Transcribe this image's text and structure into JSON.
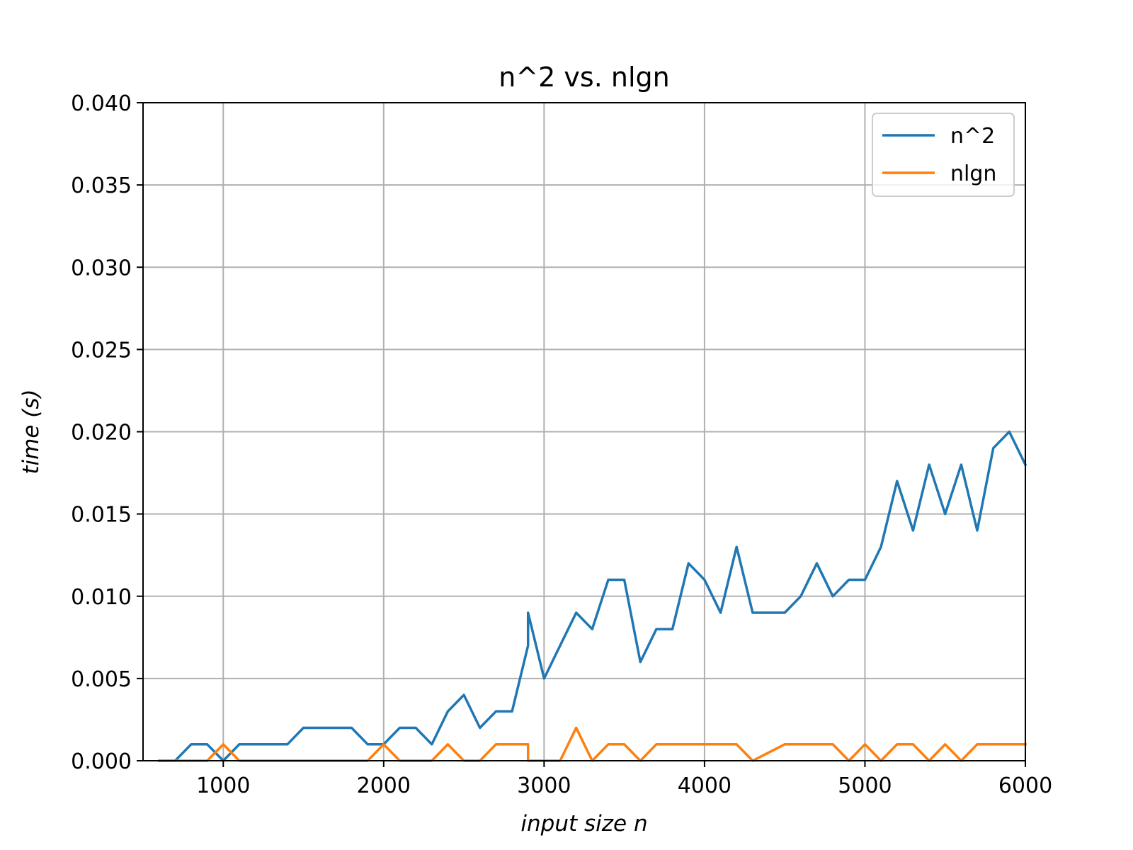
{
  "chart_data": {
    "type": "line",
    "title": "n^2 vs. nlgn",
    "xlabel": "input size n",
    "ylabel": "time (s)",
    "xlim": [
      500,
      6000
    ],
    "ylim": [
      0,
      0.04
    ],
    "xticks": [
      1000,
      2000,
      3000,
      4000,
      5000,
      6000
    ],
    "xtick_labels": [
      "1000",
      "2000",
      "3000",
      "4000",
      "5000",
      "6000"
    ],
    "yticks": [
      0,
      0.005,
      0.01,
      0.015,
      0.02,
      0.025,
      0.03,
      0.035,
      0.04
    ],
    "ytick_labels": [
      "0.000",
      "0.005",
      "0.010",
      "0.015",
      "0.020",
      "0.025",
      "0.030",
      "0.035",
      "0.040"
    ],
    "grid": true,
    "legend_position": "top-right",
    "series": [
      {
        "name": "n^2",
        "color": "#1f77b4",
        "x": [
          600,
          700,
          800,
          900,
          1000,
          1100,
          1200,
          1300,
          1400,
          1500,
          1600,
          1700,
          1800,
          1900,
          2000,
          2100,
          2200,
          2300,
          2400,
          2500,
          2600,
          2700,
          2800,
          2900,
          2900,
          3000,
          3100,
          3200,
          3300,
          3400,
          3500,
          3600,
          3700,
          3800,
          3900,
          4000,
          4100,
          4200,
          4300,
          4400,
          4500,
          4600,
          4700,
          4800,
          4900,
          5000,
          5100,
          5200,
          5300,
          5400,
          5500,
          5600,
          5700,
          5800,
          5900,
          6000
        ],
        "y": [
          0,
          0,
          0.001,
          0.001,
          0,
          0.001,
          0.001,
          0.001,
          0.001,
          0.002,
          0.002,
          0.002,
          0.002,
          0.001,
          0.001,
          0.002,
          0.002,
          0.001,
          0.003,
          0.004,
          0.002,
          0.003,
          0.003,
          0.007,
          0.009,
          0.005,
          0.007,
          0.009,
          0.008,
          0.011,
          0.011,
          0.006,
          0.008,
          0.008,
          0.012,
          0.011,
          0.009,
          0.013,
          0.009,
          0.009,
          0.009,
          0.01,
          0.012,
          0.01,
          0.011,
          0.011,
          0.013,
          0.017,
          0.014,
          0.018,
          0.015,
          0.018,
          0.014,
          0.019,
          0.02,
          0.018
        ]
      },
      {
        "name": "nlgn",
        "color": "#ff7f0e",
        "x": [
          600,
          700,
          800,
          900,
          1000,
          1100,
          1200,
          1300,
          1400,
          1500,
          1600,
          1700,
          1800,
          1900,
          2000,
          2100,
          2200,
          2300,
          2400,
          2500,
          2600,
          2700,
          2800,
          2900,
          2900,
          3000,
          3100,
          3200,
          3300,
          3400,
          3500,
          3600,
          3700,
          3800,
          3900,
          4000,
          4100,
          4200,
          4300,
          4400,
          4500,
          4600,
          4700,
          4800,
          4900,
          5000,
          5100,
          5200,
          5300,
          5400,
          5500,
          5600,
          5700,
          5800,
          5900,
          6000
        ],
        "y": [
          0,
          0,
          0,
          0,
          0.001,
          0,
          0,
          0,
          0,
          0,
          0,
          0,
          0,
          0,
          0.001,
          0,
          0,
          0,
          0.001,
          0,
          0,
          0.001,
          0.001,
          0.001,
          0,
          0,
          0,
          0.002,
          0,
          0.001,
          0.001,
          0,
          0.001,
          0.001,
          0.001,
          0.001,
          0.001,
          0.001,
          0,
          0.0005,
          0.001,
          0.001,
          0.001,
          0.001,
          0,
          0.001,
          0,
          0.001,
          0.001,
          0,
          0.001,
          0,
          0.001,
          0.001,
          0.001,
          0.001
        ]
      }
    ]
  }
}
